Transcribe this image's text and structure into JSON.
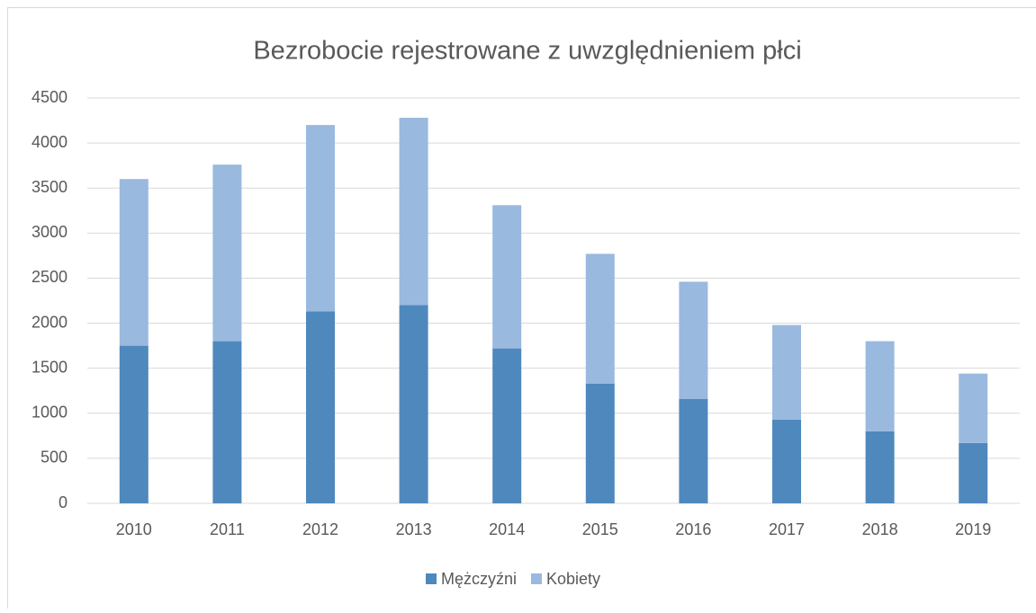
{
  "chart_data": {
    "type": "bar",
    "stacked": true,
    "title": "Bezrobocie rejestrowane z uwzględnieniem płci",
    "categories": [
      "2010",
      "2011",
      "2012",
      "2013",
      "2014",
      "2015",
      "2016",
      "2017",
      "2018",
      "2019"
    ],
    "series": [
      {
        "name": "Mężczyźni",
        "color": "#4f88bd",
        "values": [
          1750,
          1800,
          2130,
          2200,
          1720,
          1330,
          1160,
          930,
          800,
          670
        ]
      },
      {
        "name": "Kobiety",
        "color": "#9ab9df",
        "values": [
          1850,
          1960,
          2070,
          2080,
          1590,
          1440,
          1300,
          1050,
          1000,
          770
        ]
      }
    ],
    "ylim": [
      0,
      4500
    ],
    "yticks": [
      0,
      500,
      1000,
      1500,
      2000,
      2500,
      3000,
      3500,
      4000,
      4500
    ],
    "grid": true,
    "legend": "bottom"
  }
}
